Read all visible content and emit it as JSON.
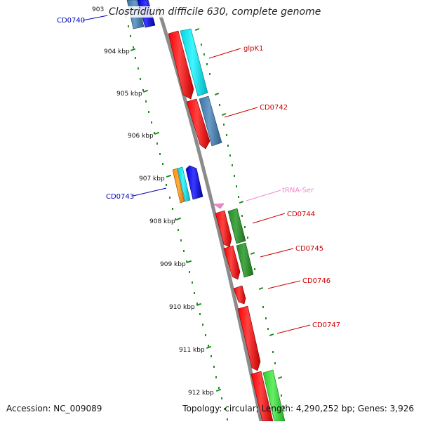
{
  "title": "Clostridium difficile 630, complete genome",
  "footer": {
    "accession_label": "Accession:",
    "accession": "NC_009089",
    "topology_label": "Topology:",
    "topology": "circular",
    "length_label": "Length:",
    "length": "4,290,252 bp",
    "genes_label": "Genes:",
    "genes": "3,926"
  },
  "scale_labels": [
    "903",
    "904 kbp",
    "905 kbp",
    "906 kbp",
    "907 kbp",
    "908 kbp",
    "909 kbp",
    "910 kbp",
    "911 kbp",
    "912 kbp"
  ],
  "gene_labels": [
    {
      "name": "CD0740",
      "strand": "reverse"
    },
    {
      "name": "glpK1",
      "strand": "forward"
    },
    {
      "name": "CD0742",
      "strand": "forward"
    },
    {
      "name": "CD0743",
      "strand": "reverse"
    },
    {
      "name": "tRNA-Ser",
      "strand": "forward"
    },
    {
      "name": "CD0744",
      "strand": "forward"
    },
    {
      "name": "CD0745",
      "strand": "forward"
    },
    {
      "name": "CD0746",
      "strand": "forward"
    },
    {
      "name": "CD0747",
      "strand": "forward"
    }
  ],
  "colors": {
    "backbone": "#8c8c8c",
    "forward_cds": "#ff0000",
    "reverse_cds": "#0000ff",
    "forward_label": "#cc0000",
    "reverse_label": "#0000bb",
    "trna": "#ee88cc",
    "cyan_cog": "#00e5ee",
    "steelblue_cog": "#4682b4",
    "green_cog": "#2e8b2e",
    "lightgreen_cog": "#33cc33",
    "orange_cog": "#ff8c00",
    "tick": "#228b22"
  }
}
